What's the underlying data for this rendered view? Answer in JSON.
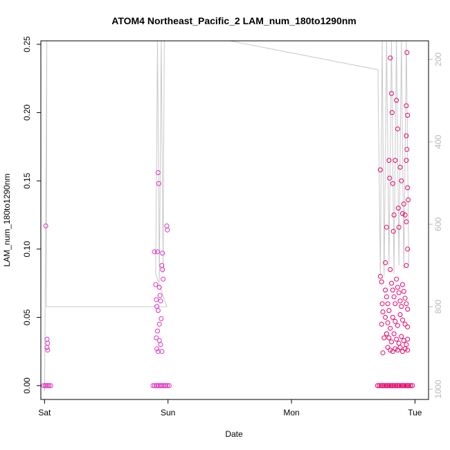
{
  "chart_data": {
    "type": "scatter",
    "title": "ATOM4 Northeast_Pacific_2 LAM_num_180to1290nm",
    "xlabel": "Date",
    "ylabel": "LAM_num_180to1290nm",
    "x_ticks": [
      {
        "label": "Sat",
        "value": 0
      },
      {
        "label": "Sun",
        "value": 1
      },
      {
        "label": "Mon",
        "value": 2
      },
      {
        "label": "Tue",
        "value": 3
      }
    ],
    "xlim": [
      -0.03,
      3.11
    ],
    "ylim": [
      0,
      0.25
    ],
    "y_ticks": [
      0.0,
      0.05,
      0.1,
      0.15,
      0.2,
      0.25
    ],
    "y_tick_labels": [
      "0.00",
      "0.05",
      "0.10",
      "0.15",
      "0.20",
      "0.25"
    ],
    "y2_ticks": [
      200,
      400,
      600,
      800,
      1000
    ],
    "y2_tick_labels": [
      "200",
      "400",
      "600",
      "800",
      "1000"
    ],
    "y2lim": [
      1025,
      155
    ],
    "grid": false,
    "colors": {
      "points_dark": "#e8006a",
      "points_light": "#e030c0",
      "pressure_line": "#c8c8c8"
    },
    "series": [
      {
        "values": [
          {
            "x": 0.01,
            "y": 0.117
          },
          {
            "x": 0.02,
            "y": 0.034
          },
          {
            "x": 0.025,
            "y": 0.031
          },
          {
            "x": 0.02,
            "y": 0.028
          },
          {
            "x": 0.025,
            "y": 0.026
          },
          {
            "x": 0.015,
            "y": 0.0
          },
          {
            "x": 0.03,
            "y": 0.0
          },
          {
            "x": 0.89,
            "y": 0.098
          },
          {
            "x": 0.915,
            "y": 0.098
          },
          {
            "x": 0.92,
            "y": 0.156
          },
          {
            "x": 0.925,
            "y": 0.148
          },
          {
            "x": 0.955,
            "y": 0.097
          },
          {
            "x": 0.99,
            "y": 0.117
          },
          {
            "x": 0.995,
            "y": 0.114
          },
          {
            "x": 0.9,
            "y": 0.074
          },
          {
            "x": 0.905,
            "y": 0.063
          },
          {
            "x": 0.91,
            "y": 0.058
          },
          {
            "x": 0.92,
            "y": 0.055
          },
          {
            "x": 0.93,
            "y": 0.072
          },
          {
            "x": 0.935,
            "y": 0.066
          },
          {
            "x": 0.94,
            "y": 0.062
          },
          {
            "x": 0.95,
            "y": 0.088
          },
          {
            "x": 0.955,
            "y": 0.085
          },
          {
            "x": 0.96,
            "y": 0.078
          },
          {
            "x": 0.945,
            "y": 0.049
          },
          {
            "x": 0.93,
            "y": 0.045
          },
          {
            "x": 0.915,
            "y": 0.04
          },
          {
            "x": 0.905,
            "y": 0.035
          },
          {
            "x": 0.93,
            "y": 0.033
          },
          {
            "x": 0.94,
            "y": 0.03
          },
          {
            "x": 0.91,
            "y": 0.027
          },
          {
            "x": 0.95,
            "y": 0.025
          },
          {
            "x": 0.92,
            "y": 0.025
          },
          {
            "x": 0.9,
            "y": 0.0
          },
          {
            "x": 0.93,
            "y": 0.0
          },
          {
            "x": 0.96,
            "y": 0.0
          },
          {
            "x": 0.99,
            "y": 0.0
          },
          {
            "x": 2.72,
            "y": 0.158
          },
          {
            "x": 2.72,
            "y": 0.08
          },
          {
            "x": 2.73,
            "y": 0.076
          },
          {
            "x": 2.735,
            "y": 0.06
          },
          {
            "x": 2.74,
            "y": 0.054
          },
          {
            "x": 2.73,
            "y": 0.045
          },
          {
            "x": 2.75,
            "y": 0.035
          },
          {
            "x": 2.74,
            "y": 0.024
          },
          {
            "x": 2.76,
            "y": 0.09
          },
          {
            "x": 2.77,
            "y": 0.116
          },
          {
            "x": 2.79,
            "y": 0.165
          },
          {
            "x": 2.795,
            "y": 0.152
          },
          {
            "x": 2.8,
            "y": 0.24
          },
          {
            "x": 2.81,
            "y": 0.214
          },
          {
            "x": 2.815,
            "y": 0.2
          },
          {
            "x": 2.82,
            "y": 0.148
          },
          {
            "x": 2.83,
            "y": 0.125
          },
          {
            "x": 2.825,
            "y": 0.113
          },
          {
            "x": 2.84,
            "y": 0.165
          },
          {
            "x": 2.85,
            "y": 0.209
          },
          {
            "x": 2.86,
            "y": 0.188
          },
          {
            "x": 2.865,
            "y": 0.13
          },
          {
            "x": 2.87,
            "y": 0.116
          },
          {
            "x": 2.88,
            "y": 0.16
          },
          {
            "x": 2.89,
            "y": 0.15
          },
          {
            "x": 2.9,
            "y": 0.126
          },
          {
            "x": 2.91,
            "y": 0.133
          },
          {
            "x": 2.92,
            "y": 0.125
          },
          {
            "x": 2.935,
            "y": 0.244
          },
          {
            "x": 2.93,
            "y": 0.205
          },
          {
            "x": 2.94,
            "y": 0.198
          },
          {
            "x": 2.93,
            "y": 0.183
          },
          {
            "x": 2.935,
            "y": 0.173
          },
          {
            "x": 2.93,
            "y": 0.165
          },
          {
            "x": 2.94,
            "y": 0.145
          },
          {
            "x": 2.945,
            "y": 0.136
          },
          {
            "x": 2.93,
            "y": 0.12
          },
          {
            "x": 2.94,
            "y": 0.1
          },
          {
            "x": 2.93,
            "y": 0.088
          },
          {
            "x": 2.76,
            "y": 0.07
          },
          {
            "x": 2.77,
            "y": 0.065
          },
          {
            "x": 2.78,
            "y": 0.06
          },
          {
            "x": 2.79,
            "y": 0.055
          },
          {
            "x": 2.8,
            "y": 0.085
          },
          {
            "x": 2.81,
            "y": 0.075
          },
          {
            "x": 2.82,
            "y": 0.07
          },
          {
            "x": 2.83,
            "y": 0.065
          },
          {
            "x": 2.84,
            "y": 0.06
          },
          {
            "x": 2.85,
            "y": 0.078
          },
          {
            "x": 2.86,
            "y": 0.072
          },
          {
            "x": 2.87,
            "y": 0.068
          },
          {
            "x": 2.88,
            "y": 0.062
          },
          {
            "x": 2.89,
            "y": 0.058
          },
          {
            "x": 2.9,
            "y": 0.074
          },
          {
            "x": 2.91,
            "y": 0.069
          },
          {
            "x": 2.92,
            "y": 0.064
          },
          {
            "x": 2.93,
            "y": 0.06
          },
          {
            "x": 2.94,
            "y": 0.056
          },
          {
            "x": 2.76,
            "y": 0.05
          },
          {
            "x": 2.78,
            "y": 0.046
          },
          {
            "x": 2.8,
            "y": 0.042
          },
          {
            "x": 2.82,
            "y": 0.05
          },
          {
            "x": 2.84,
            "y": 0.047
          },
          {
            "x": 2.86,
            "y": 0.044
          },
          {
            "x": 2.88,
            "y": 0.052
          },
          {
            "x": 2.9,
            "y": 0.048
          },
          {
            "x": 2.92,
            "y": 0.045
          },
          {
            "x": 2.94,
            "y": 0.043
          },
          {
            "x": 2.77,
            "y": 0.038
          },
          {
            "x": 2.79,
            "y": 0.035
          },
          {
            "x": 2.81,
            "y": 0.032
          },
          {
            "x": 2.83,
            "y": 0.038
          },
          {
            "x": 2.85,
            "y": 0.034
          },
          {
            "x": 2.87,
            "y": 0.031
          },
          {
            "x": 2.89,
            "y": 0.036
          },
          {
            "x": 2.91,
            "y": 0.033
          },
          {
            "x": 2.93,
            "y": 0.03
          },
          {
            "x": 2.94,
            "y": 0.034
          },
          {
            "x": 2.78,
            "y": 0.028
          },
          {
            "x": 2.8,
            "y": 0.026
          },
          {
            "x": 2.82,
            "y": 0.025
          },
          {
            "x": 2.84,
            "y": 0.027
          },
          {
            "x": 2.86,
            "y": 0.026
          },
          {
            "x": 2.88,
            "y": 0.028
          },
          {
            "x": 2.9,
            "y": 0.025
          },
          {
            "x": 2.92,
            "y": 0.027
          },
          {
            "x": 2.94,
            "y": 0.026
          },
          {
            "x": 2.72,
            "y": 0.0
          },
          {
            "x": 2.76,
            "y": 0.0
          },
          {
            "x": 2.8,
            "y": 0.0
          },
          {
            "x": 2.84,
            "y": 0.0
          },
          {
            "x": 2.88,
            "y": 0.0
          },
          {
            "x": 2.92,
            "y": 0.0
          },
          {
            "x": 2.96,
            "y": 0.0
          }
        ]
      }
    ],
    "pressure_line": [
      {
        "x": 0.0,
        "y2": 1005
      },
      {
        "x": 0.015,
        "y2": 330
      },
      {
        "x": 0.018,
        "y2": 155
      },
      {
        "x": 0.015,
        "y2": 800
      },
      {
        "x": 0.99,
        "y2": 800
      },
      {
        "x": 0.9,
        "y2": 720
      },
      {
        "x": 0.915,
        "y2": 155
      },
      {
        "x": 0.93,
        "y2": 740
      },
      {
        "x": 0.945,
        "y2": 155
      },
      {
        "x": 0.96,
        "y2": 720
      },
      {
        "x": 0.97,
        "y2": 155
      },
      {
        "x": 1.5,
        "y2": 155
      },
      {
        "x": 2.7,
        "y2": 225
      },
      {
        "x": 2.72,
        "y2": 725
      },
      {
        "x": 2.735,
        "y2": 155
      },
      {
        "x": 2.75,
        "y2": 725
      },
      {
        "x": 2.77,
        "y2": 155
      },
      {
        "x": 2.79,
        "y2": 700
      },
      {
        "x": 2.81,
        "y2": 155
      },
      {
        "x": 2.83,
        "y2": 720
      },
      {
        "x": 2.85,
        "y2": 155
      },
      {
        "x": 2.87,
        "y2": 700
      },
      {
        "x": 2.89,
        "y2": 155
      },
      {
        "x": 2.91,
        "y2": 710
      },
      {
        "x": 2.93,
        "y2": 155
      },
      {
        "x": 2.95,
        "y2": 700
      }
    ]
  }
}
